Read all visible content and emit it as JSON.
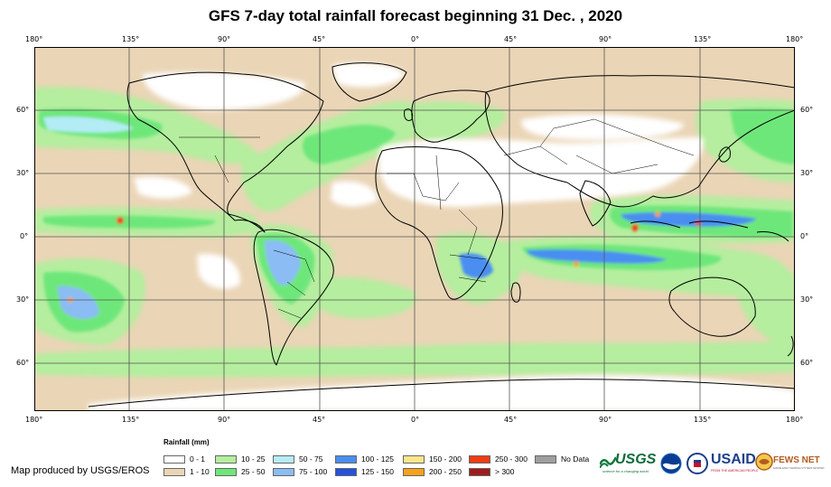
{
  "title": "GFS 7-day total rainfall forecast beginning 31 Dec. , 2020",
  "axes": {
    "lon_labels": [
      "180°",
      "135°",
      "90°",
      "45°",
      "0°",
      "45°",
      "90°",
      "135°",
      "180°"
    ],
    "lat_labels": [
      "60°",
      "30°",
      "0°",
      "30°",
      "60°"
    ]
  },
  "legend": {
    "title": "Rainfall (mm)",
    "items": [
      {
        "label": "0 - 1",
        "color": "#ffffff"
      },
      {
        "label": "1 - 10",
        "color": "#ead5b6"
      },
      {
        "label": "10 - 25",
        "color": "#b4ee9e"
      },
      {
        "label": "25 - 50",
        "color": "#6ee77a"
      },
      {
        "label": "50 - 75",
        "color": "#b4ecf6"
      },
      {
        "label": "75 - 100",
        "color": "#8bbcf4"
      },
      {
        "label": "100 - 125",
        "color": "#4a8ef0"
      },
      {
        "label": "125 - 150",
        "color": "#2652db"
      },
      {
        "label": "150 - 200",
        "color": "#fbe68a"
      },
      {
        "label": "200 - 250",
        "color": "#f6a21a"
      },
      {
        "label": "250 - 300",
        "color": "#f03c12"
      },
      {
        "label": "> 300",
        "color": "#a01c1c"
      },
      {
        "label": "No Data",
        "color": "#9e9e9e"
      }
    ]
  },
  "producer": "Map produced by USGS/EROS",
  "logos": {
    "usgs": "USGS",
    "usgs_tagline": "science for a changing world",
    "usaid": "USAID",
    "usaid_tagline": "FROM THE AMERICAN PEOPLE",
    "fewsnet": "FEWS NET",
    "fewsnet_tagline": "FAMINE EARLY WARNING SYSTEMS NETWORK"
  },
  "colors": {
    "dry": "#ffffff",
    "light": "#ead5b6",
    "moderate": "#b4ee9e",
    "heavy": "#6ee77a",
    "very_heavy": "#8bbcf4",
    "extreme": "#2652db",
    "coast": "#000000",
    "grid": "#555555"
  }
}
